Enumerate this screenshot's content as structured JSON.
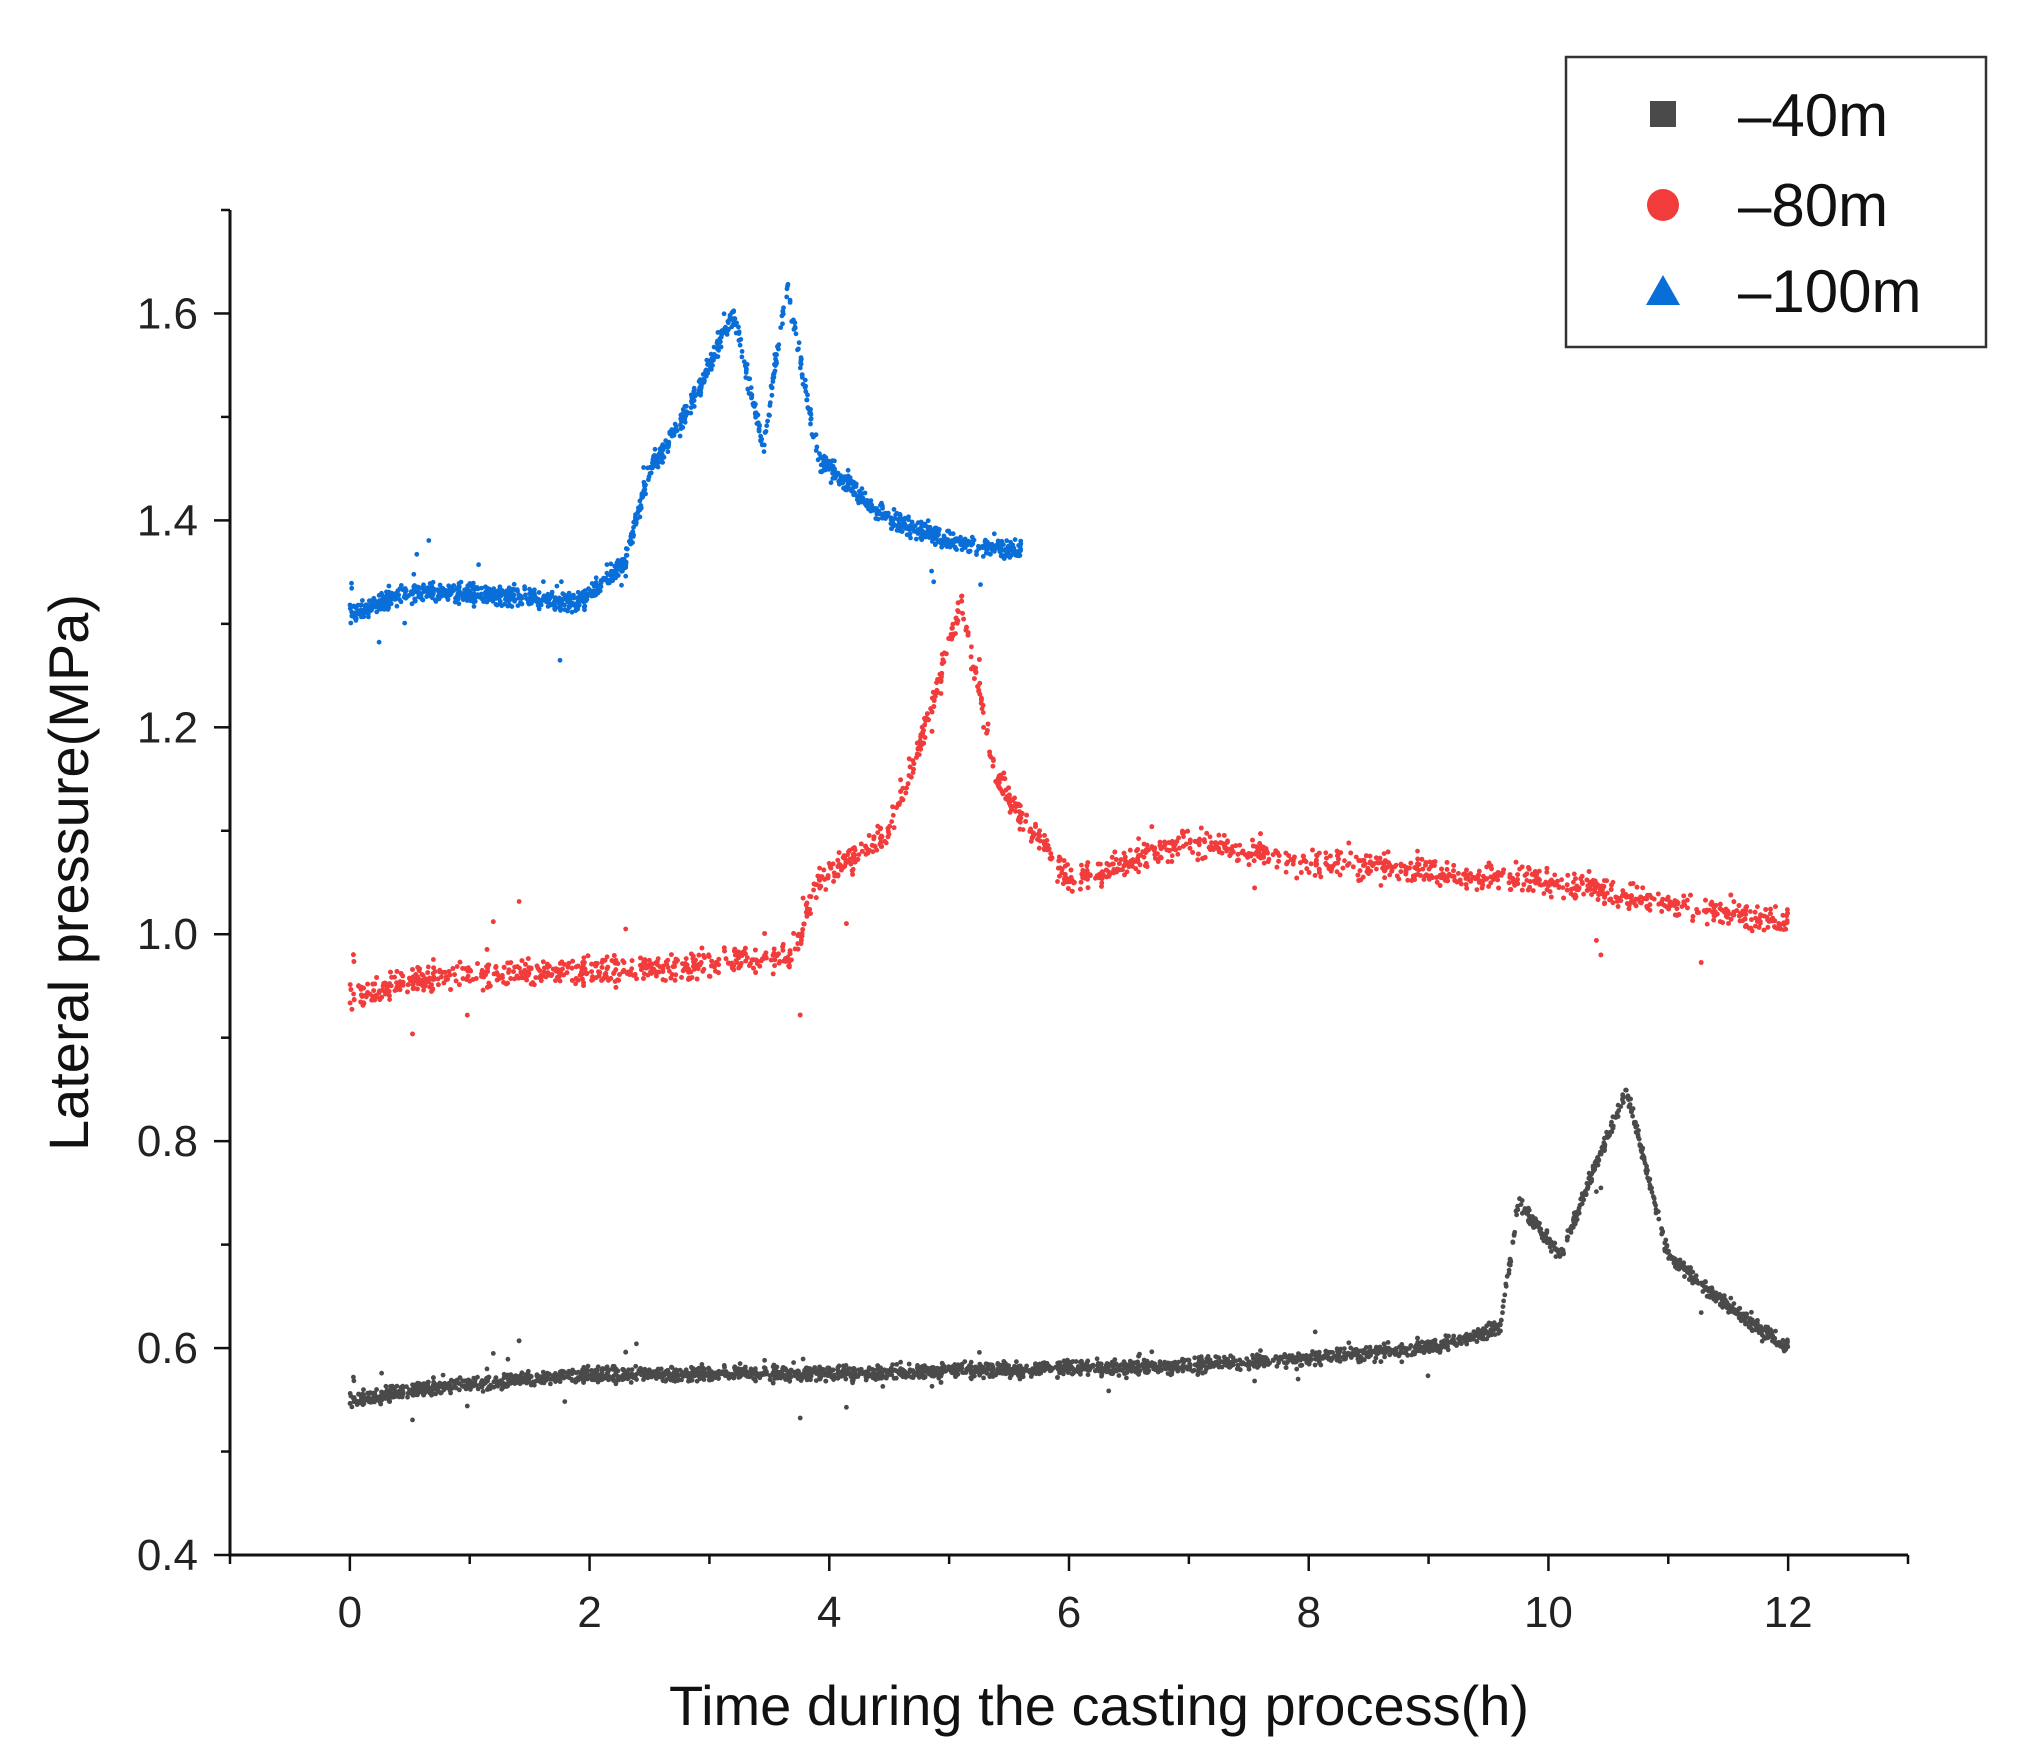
{
  "chart_data": {
    "type": "scatter",
    "title": "",
    "xlabel": "Time during the casting process(h)",
    "ylabel": "Lateral pressure(MPa)",
    "xlim": [
      -1,
      13
    ],
    "ylim": [
      0.4,
      1.7
    ],
    "xticks": [
      0,
      2,
      4,
      6,
      8,
      10,
      12
    ],
    "xtick_labels": [
      "0",
      "2",
      "4",
      "6",
      "8",
      "10",
      "12"
    ],
    "yticks": [
      0.4,
      0.6,
      0.8,
      1.0,
      1.2,
      1.4,
      1.6
    ],
    "ytick_labels": [
      "0.4",
      "0.6",
      "0.8",
      "1.0",
      "1.2",
      "1.4",
      "1.6"
    ],
    "grid": false,
    "legend_position": "top-right",
    "series": [
      {
        "name": "–40m",
        "marker": "square",
        "color": "#4a4a4a",
        "x": [
          0,
          0.3,
          0.6,
          1,
          2,
          3,
          4,
          5,
          6,
          7,
          8,
          9,
          9.6,
          9.75,
          10.1,
          10.65,
          11,
          11.5,
          12
        ],
        "y": [
          0.55,
          0.555,
          0.56,
          0.565,
          0.575,
          0.575,
          0.575,
          0.578,
          0.58,
          0.583,
          0.59,
          0.6,
          0.62,
          0.74,
          0.69,
          0.85,
          0.69,
          0.64,
          0.6
        ]
      },
      {
        "name": "–80m",
        "marker": "circle",
        "color": "#f23c3c",
        "x": [
          0,
          0.5,
          1,
          2,
          3,
          3.7,
          3.9,
          4.5,
          4.8,
          5.1,
          5.4,
          5.7,
          6,
          7,
          8,
          9,
          10,
          11,
          12
        ],
        "y": [
          0.94,
          0.955,
          0.96,
          0.965,
          0.97,
          0.98,
          1.05,
          1.1,
          1.2,
          1.32,
          1.15,
          1.1,
          1.05,
          1.09,
          1.07,
          1.06,
          1.05,
          1.03,
          1.01
        ]
      },
      {
        "name": "–100m",
        "marker": "triangle",
        "color": "#0a6ed8",
        "x": [
          0,
          0.5,
          1,
          1.9,
          2.3,
          2.5,
          2.8,
          3.2,
          3.45,
          3.65,
          3.9,
          4.5,
          5,
          5.6
        ],
        "y": [
          1.31,
          1.33,
          1.33,
          1.32,
          1.36,
          1.45,
          1.5,
          1.6,
          1.47,
          1.63,
          1.46,
          1.4,
          1.38,
          1.37
        ]
      }
    ]
  }
}
